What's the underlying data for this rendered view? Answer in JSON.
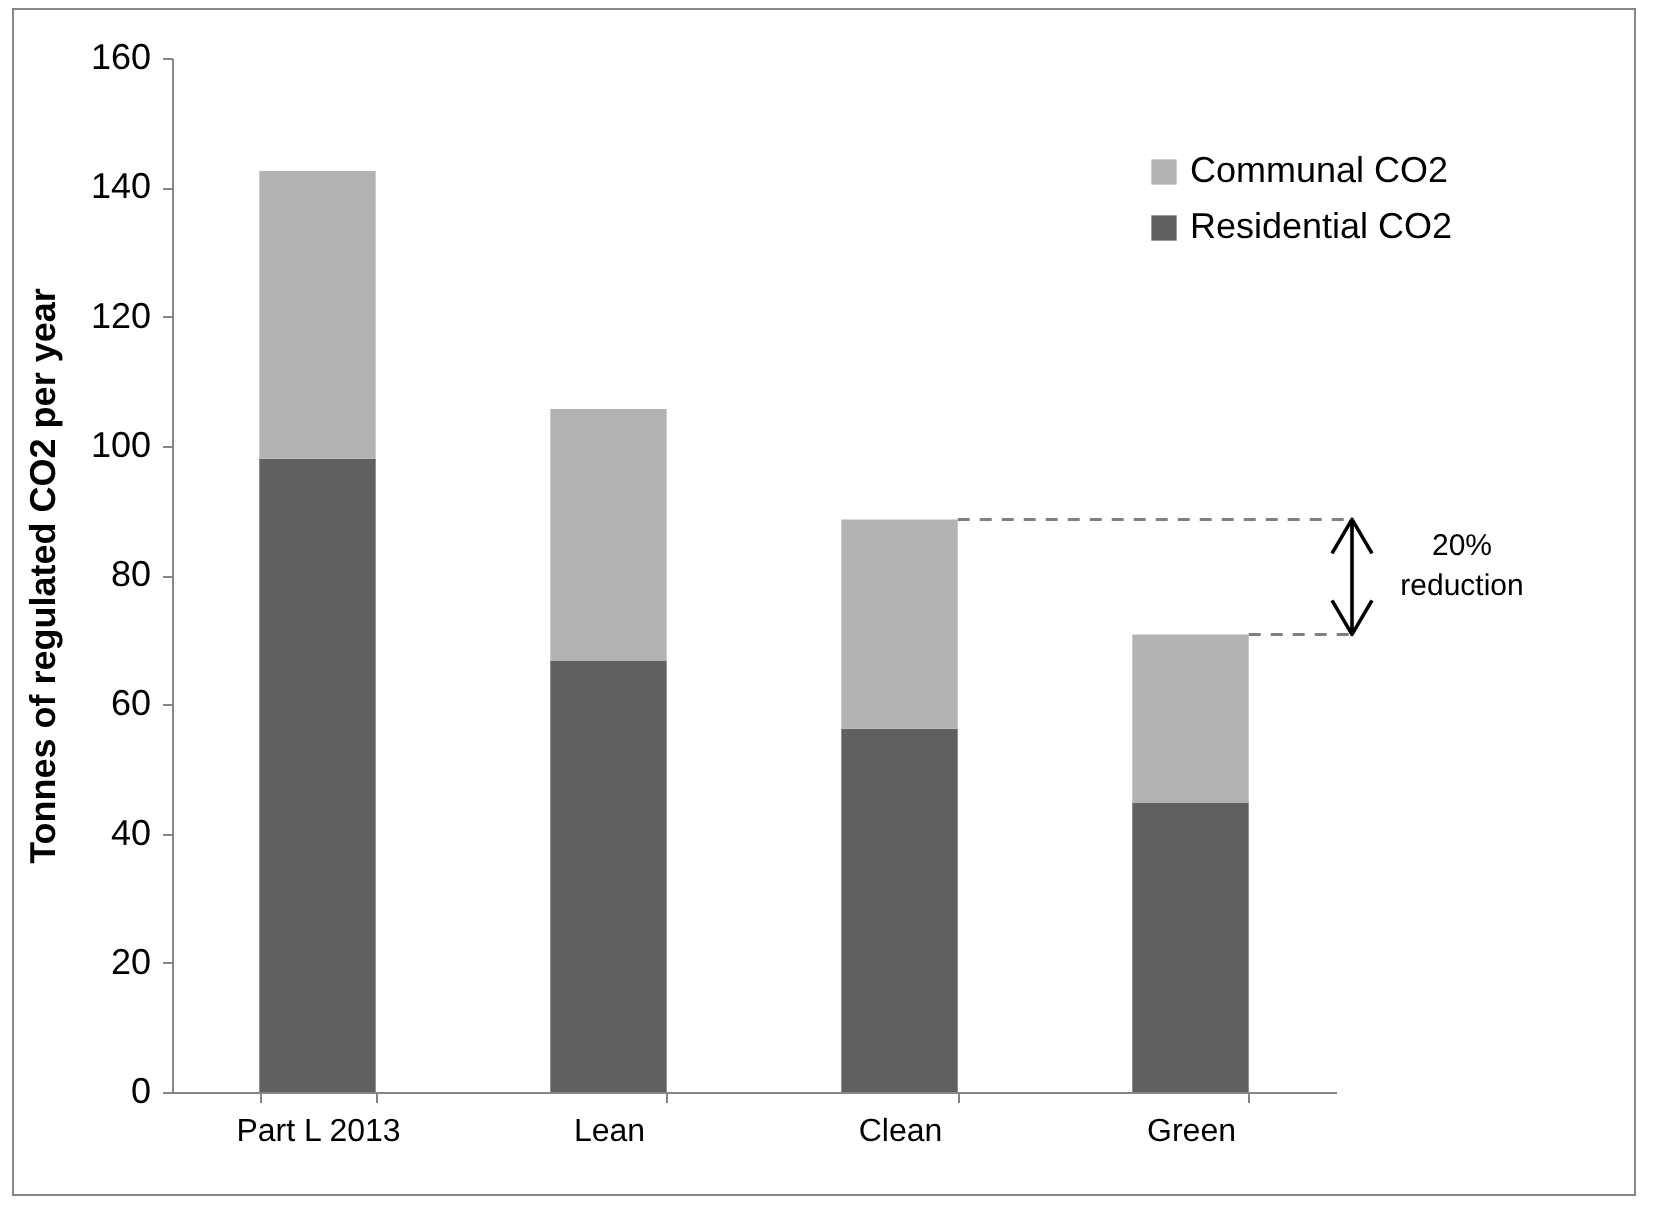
{
  "chart_data": {
    "type": "bar",
    "stacked": true,
    "ylabel": "Tonnes of regulated CO2 per year",
    "categories": [
      "Part L 2013",
      "Lean",
      "Clean",
      "Green"
    ],
    "series": [
      {
        "name": "Residential CO2",
        "color": "#606060",
        "values": [
          98,
          66.7,
          56.2,
          44.8
        ]
      },
      {
        "name": "Communal CO2",
        "color": "#b3b3b3",
        "values": [
          44.5,
          39,
          32.4,
          26
        ]
      }
    ],
    "ylim": [
      0,
      160
    ],
    "yticks": [
      0,
      20,
      40,
      60,
      80,
      100,
      120,
      140,
      160
    ],
    "grid": false,
    "legend": "top right",
    "annotations": [
      "20% reduction"
    ]
  }
}
